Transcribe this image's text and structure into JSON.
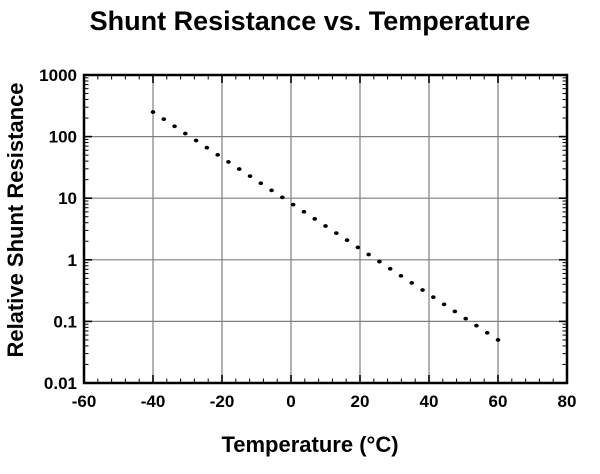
{
  "title": "Shunt Resistance vs. Temperature",
  "colors": {
    "background": "#ffffff",
    "text": "#000000",
    "grid": "#7f7f7f",
    "frame": "#000000",
    "marker": "#000000"
  },
  "chart_data": {
    "type": "scatter",
    "style": "dotted-line",
    "title": "Shunt Resistance vs. Temperature",
    "xlabel": "Temperature (°C)",
    "ylabel": "Relative Shunt Resistance",
    "legend": "none",
    "grid": "on",
    "x_axis": {
      "min": -60,
      "max": 80,
      "major_ticks": [
        -60,
        -40,
        -20,
        0,
        20,
        40,
        60,
        80
      ],
      "tick_labels": [
        "-60",
        "-40",
        "-20",
        "0",
        "20",
        "40",
        "60",
        "80"
      ],
      "minor_tick_step": 4,
      "gridlines": [
        -40,
        -20,
        0,
        20,
        40,
        60
      ]
    },
    "y_axis": {
      "scale": "log",
      "min": 0.01,
      "max": 1000,
      "major_ticks": [
        1000,
        100,
        10,
        1,
        0.1,
        0.01
      ],
      "tick_labels": [
        "1000",
        "100",
        "10",
        "1",
        "0.1",
        "0.01"
      ],
      "gridlines": [
        100,
        10,
        1,
        0.1
      ]
    },
    "series": [
      {
        "name": "Relative Shunt Resistance",
        "marker": "dot",
        "color": "#000000",
        "points": [
          [
            -40.0,
            250
          ],
          [
            -36.88,
            192
          ],
          [
            -33.75,
            147
          ],
          [
            -30.63,
            112
          ],
          [
            -27.5,
            86.2
          ],
          [
            -24.38,
            66.1
          ],
          [
            -21.25,
            50.6
          ],
          [
            -18.13,
            38.8
          ],
          [
            -15.0,
            29.7
          ],
          [
            -11.88,
            22.8
          ],
          [
            -8.75,
            17.5
          ],
          [
            -5.63,
            13.4
          ],
          [
            -2.5,
            10.3
          ],
          [
            0.63,
            7.86
          ],
          [
            3.75,
            6.02
          ],
          [
            6.88,
            4.62
          ],
          [
            10.0,
            3.54
          ],
          [
            13.13,
            2.71
          ],
          [
            16.25,
            2.08
          ],
          [
            19.38,
            1.59
          ],
          [
            22.5,
            1.22
          ],
          [
            25.63,
            0.935
          ],
          [
            28.75,
            0.716
          ],
          [
            31.88,
            0.549
          ],
          [
            35.0,
            0.421
          ],
          [
            38.13,
            0.323
          ],
          [
            41.25,
            0.247
          ],
          [
            44.38,
            0.189
          ],
          [
            47.5,
            0.145
          ],
          [
            50.63,
            0.111
          ],
          [
            53.75,
            0.0852
          ],
          [
            56.88,
            0.0653
          ],
          [
            60.0,
            0.05
          ]
        ]
      }
    ]
  }
}
